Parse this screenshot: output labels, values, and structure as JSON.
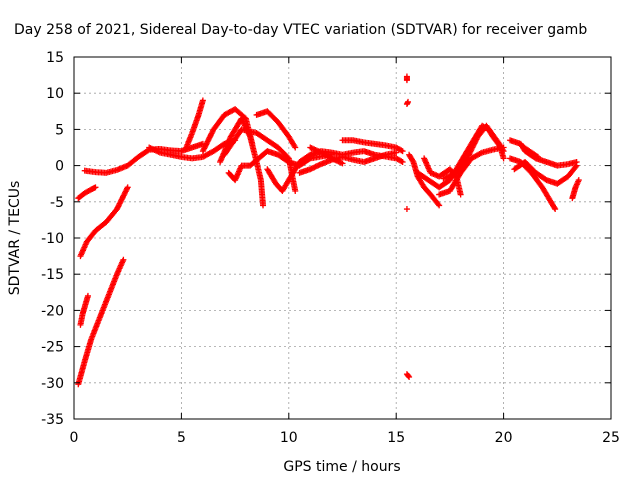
{
  "chart_data": {
    "type": "scatter",
    "title": "Day 258 of 2021, Sidereal Day-to-day VTEC variation (SDTVAR) for receiver gamb",
    "xlabel": "GPS time / hours",
    "ylabel": "SDTVAR / TECUs",
    "xlim": [
      0,
      25
    ],
    "ylim": [
      -35,
      15
    ],
    "xticks": [
      "0",
      "5",
      "10",
      "15",
      "20",
      "25"
    ],
    "yticks": [
      "15",
      "10",
      "5",
      "0",
      "-5",
      "-10",
      "-15",
      "-20",
      "-25",
      "-30",
      "-35"
    ],
    "grid": true,
    "marker": "+",
    "series": [
      {
        "name": "SDTVAR",
        "color": "#ff0000",
        "tracks": [
          [
            [
              0.2,
              -30.2
            ],
            [
              0.5,
              -27
            ],
            [
              0.8,
              -24
            ],
            [
              1.2,
              -21
            ],
            [
              1.6,
              -18
            ],
            [
              2.0,
              -15
            ],
            [
              2.3,
              -13
            ]
          ],
          [
            [
              0.3,
              -22
            ],
            [
              0.4,
              -20.5
            ],
            [
              0.55,
              -19
            ],
            [
              0.65,
              -18
            ]
          ],
          [
            [
              0.3,
              -12.5
            ],
            [
              0.6,
              -10.5
            ],
            [
              1.0,
              -9
            ],
            [
              1.5,
              -7.8
            ],
            [
              2.0,
              -6
            ],
            [
              2.5,
              -3
            ]
          ],
          [
            [
              0.2,
              -4.5
            ],
            [
              0.5,
              -3.8
            ],
            [
              0.8,
              -3.3
            ],
            [
              1.0,
              -3.0
            ]
          ],
          [
            [
              0.5,
              -0.7
            ],
            [
              1.0,
              -0.9
            ],
            [
              1.5,
              -1.0
            ],
            [
              2.0,
              -0.6
            ],
            [
              2.5,
              0
            ],
            [
              3.0,
              1.2
            ],
            [
              3.5,
              2.2
            ],
            [
              4.0,
              2.3
            ],
            [
              4.5,
              2.1
            ],
            [
              5.0,
              2.0
            ],
            [
              5.5,
              2.5
            ],
            [
              6.0,
              3.0
            ]
          ],
          [
            [
              3.5,
              2.5
            ],
            [
              4.0,
              1.8
            ],
            [
              4.5,
              1.5
            ],
            [
              5.0,
              1.2
            ],
            [
              5.5,
              1.0
            ],
            [
              6.0,
              1.2
            ],
            [
              6.5,
              2.0
            ],
            [
              7.0,
              3.0
            ],
            [
              7.5,
              3.5
            ]
          ],
          [
            [
              5.2,
              2.3
            ],
            [
              5.5,
              4.5
            ],
            [
              5.8,
              7.0
            ],
            [
              6.0,
              9.0
            ]
          ],
          [
            [
              6.0,
              2.0
            ],
            [
              6.5,
              5.0
            ],
            [
              7.0,
              7.0
            ],
            [
              7.5,
              7.8
            ],
            [
              8.0,
              6.5
            ],
            [
              8.3,
              3.0
            ]
          ],
          [
            [
              6.8,
              0.5
            ],
            [
              7.3,
              4.0
            ],
            [
              7.8,
              6.5
            ],
            [
              8.2,
              4.0
            ],
            [
              8.5,
              0.5
            ],
            [
              8.7,
              -2.0
            ],
            [
              8.8,
              -5.5
            ]
          ],
          [
            [
              7.0,
              1.5
            ],
            [
              7.8,
              5.0
            ],
            [
              8.5,
              4.5
            ],
            [
              9.0,
              3.5
            ],
            [
              9.5,
              2.5
            ],
            [
              10.0,
              1.0
            ],
            [
              10.3,
              -3.5
            ]
          ],
          [
            [
              7.2,
              -1.0
            ],
            [
              7.5,
              -2.0
            ],
            [
              7.8,
              0.0
            ],
            [
              8.2,
              0.0
            ],
            [
              8.6,
              1.0
            ],
            [
              9.0,
              2.0
            ],
            [
              9.5,
              1.5
            ],
            [
              10.0,
              0.5
            ],
            [
              10.5,
              0.0
            ],
            [
              11.0,
              1.0
            ],
            [
              12.0,
              1.5
            ]
          ],
          [
            [
              8.5,
              7.0
            ],
            [
              9.0,
              7.5
            ],
            [
              9.5,
              6.0
            ],
            [
              10.0,
              4.0
            ],
            [
              10.3,
              2.5
            ]
          ],
          [
            [
              9.0,
              -0.5
            ],
            [
              9.4,
              -2.5
            ],
            [
              9.7,
              -3.5
            ],
            [
              10.0,
              -2.0
            ],
            [
              10.5,
              0.5
            ],
            [
              11.0,
              1.5
            ],
            [
              11.5,
              2.0
            ],
            [
              12.0,
              1.8
            ],
            [
              12.5,
              1.5
            ],
            [
              13.0,
              1.8
            ],
            [
              13.5,
              2.0
            ],
            [
              14.0,
              1.5
            ],
            [
              15.0,
              1.0
            ],
            [
              15.3,
              0.5
            ]
          ],
          [
            [
              10.5,
              -1.0
            ],
            [
              11.0,
              -0.5
            ],
            [
              11.5,
              0.2
            ],
            [
              12.0,
              0.8
            ],
            [
              12.5,
              1.2
            ],
            [
              13.0,
              0.8
            ],
            [
              13.5,
              0.5
            ],
            [
              14.0,
              1.0
            ],
            [
              14.5,
              1.5
            ],
            [
              15.0,
              1.8
            ]
          ],
          [
            [
              12.5,
              3.5
            ],
            [
              13.0,
              3.5
            ],
            [
              13.5,
              3.2
            ],
            [
              14.0,
              3.0
            ],
            [
              14.5,
              2.8
            ],
            [
              15.0,
              2.5
            ],
            [
              15.3,
              2.0
            ]
          ],
          [
            [
              11.0,
              2.5
            ],
            [
              11.5,
              1.8
            ],
            [
              12.0,
              1.0
            ],
            [
              12.5,
              0.3
            ]
          ],
          [
            [
              15.5,
              11.8
            ],
            [
              15.5,
              12.3
            ]
          ],
          [
            [
              15.5,
              8.5
            ],
            [
              15.55,
              8.8
            ]
          ],
          [
            [
              15.5,
              -6.0
            ]
          ],
          [
            [
              15.5,
              -28.8
            ],
            [
              15.6,
              -29.2
            ]
          ],
          [
            [
              15.6,
              1.5
            ],
            [
              15.8,
              0.5
            ],
            [
              16.0,
              -1.5
            ],
            [
              16.3,
              -3.0
            ],
            [
              16.6,
              -4.0
            ],
            [
              17.0,
              -5.5
            ]
          ],
          [
            [
              16.0,
              -1.0
            ],
            [
              16.5,
              -2.0
            ],
            [
              17.0,
              -3.0
            ],
            [
              17.5,
              -2.0
            ],
            [
              18.0,
              0.5
            ],
            [
              18.5,
              3.0
            ],
            [
              19.0,
              5.5
            ],
            [
              19.3,
              5.0
            ],
            [
              19.5,
              4.0
            ],
            [
              20.0,
              2.0
            ]
          ],
          [
            [
              16.3,
              1.0
            ],
            [
              16.6,
              -1.0
            ],
            [
              17.0,
              -1.5
            ],
            [
              17.5,
              -0.5
            ],
            [
              17.8,
              -1.5
            ],
            [
              18.0,
              -4.0
            ]
          ],
          [
            [
              17.0,
              -4.0
            ],
            [
              17.5,
              -3.5
            ],
            [
              18.0,
              -1.0
            ],
            [
              18.5,
              1.0
            ],
            [
              19.0,
              1.8
            ],
            [
              19.5,
              2.2
            ],
            [
              20.0,
              2.5
            ]
          ],
          [
            [
              17.2,
              -1.8
            ],
            [
              17.8,
              -1.0
            ],
            [
              18.3,
              1.0
            ],
            [
              18.8,
              4.0
            ],
            [
              19.2,
              5.5
            ],
            [
              19.8,
              3.0
            ],
            [
              20.0,
              1.0
            ]
          ],
          [
            [
              20.3,
              3.5
            ],
            [
              20.8,
              3.0
            ],
            [
              21.0,
              2.0
            ],
            [
              21.5,
              1.0
            ],
            [
              22.0,
              0.5
            ],
            [
              22.5,
              0.0
            ],
            [
              23.0,
              0.2
            ],
            [
              23.4,
              0.5
            ]
          ],
          [
            [
              20.3,
              1.0
            ],
            [
              20.8,
              0.5
            ],
            [
              21.3,
              -1.0
            ],
            [
              21.8,
              -3.0
            ],
            [
              22.2,
              -5.0
            ],
            [
              22.4,
              -6.0
            ]
          ],
          [
            [
              20.5,
              -0.5
            ],
            [
              21.0,
              0.5
            ],
            [
              21.5,
              -1.0
            ],
            [
              22.0,
              -2.0
            ],
            [
              22.5,
              -2.5
            ],
            [
              23.0,
              -1.5
            ],
            [
              23.4,
              0.0
            ]
          ],
          [
            [
              23.2,
              -4.5
            ],
            [
              23.35,
              -3.0
            ],
            [
              23.5,
              -2.0
            ]
          ],
          [
            [
              20.8,
              2.8
            ],
            [
              21.2,
              2.0
            ],
            [
              21.6,
              1.2
            ]
          ]
        ]
      }
    ]
  }
}
